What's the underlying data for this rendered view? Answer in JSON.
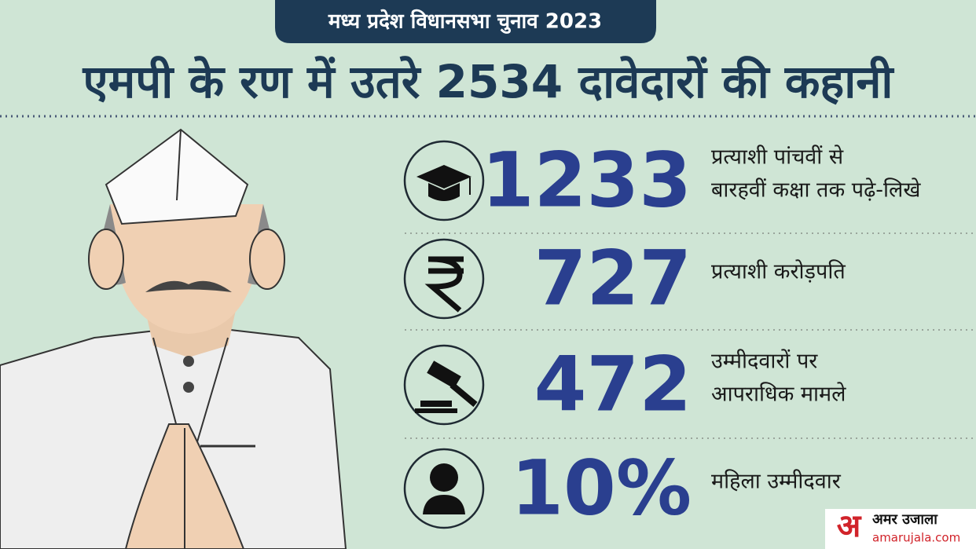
{
  "header": {
    "badge": "मध्य प्रदेश विधानसभा चुनाव 2023",
    "title": "एमपी के रण में उतरे 2534 दावेदारों की कहानी"
  },
  "stats": [
    {
      "value": "1233",
      "lines": [
        "प्रत्याशी पांचवीं से",
        "बारहवीं कक्षा तक पढ़े-लिखे"
      ]
    },
    {
      "value": "727",
      "lines": [
        "प्रत्याशी करोड़पति"
      ]
    },
    {
      "value": "472",
      "lines": [
        "उम्मीदवारों  पर",
        "आपराधिक मामले"
      ]
    },
    {
      "value": "10%",
      "lines": [
        "महिला उम्मीदवार"
      ]
    }
  ],
  "logo": {
    "mark": "अ",
    "name": "अमर उजाला",
    "url": "amarujala.com"
  }
}
